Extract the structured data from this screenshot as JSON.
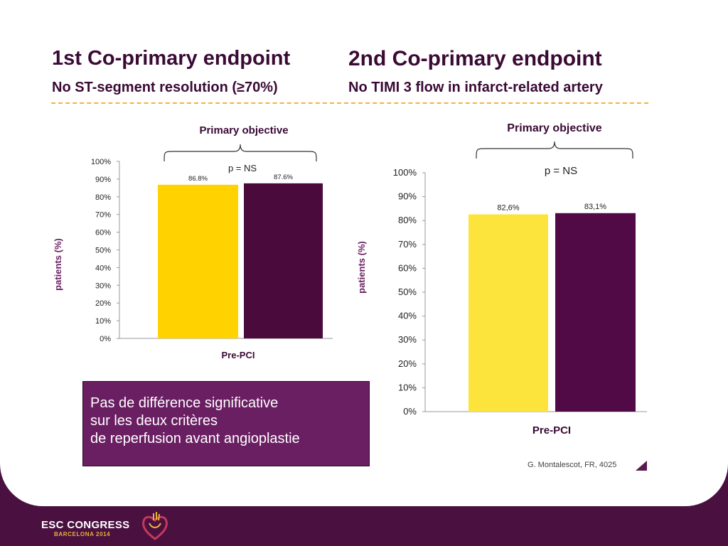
{
  "headers": {
    "left_title": "1st Co-primary endpoint",
    "left_subtitle": "No ST-segment resolution (≥70%)",
    "right_title": "2nd Co-primary endpoint",
    "right_subtitle": "No TIMI 3 flow in infarct-related artery"
  },
  "chart_data": [
    {
      "type": "bar",
      "title": "Primary objective",
      "annotation": "p = NS",
      "categories": [
        "Pre-PCI"
      ],
      "xlabel": "Pre-PCI",
      "ylabel": "patients (%)",
      "ylim": [
        0,
        100
      ],
      "yticks": [
        "0%",
        "10%",
        "20%",
        "30%",
        "40%",
        "50%",
        "60%",
        "70%",
        "80%",
        "90%",
        "100%"
      ],
      "series": [
        {
          "values": [
            86.8
          ],
          "label": "86.8%",
          "color": "#ffd200"
        },
        {
          "values": [
            87.6
          ],
          "label": "87.6%",
          "color": "#4a0a3c"
        }
      ]
    },
    {
      "type": "bar",
      "title": "Primary objective",
      "annotation": "p = NS",
      "categories": [
        "Pre-PCI"
      ],
      "xlabel": "Pre-PCI",
      "ylabel": "patients (%)",
      "ylim": [
        0,
        100
      ],
      "yticks": [
        "0%",
        "10%",
        "20%",
        "30%",
        "40%",
        "50%",
        "60%",
        "70%",
        "80%",
        "90%",
        "100%"
      ],
      "series": [
        {
          "values": [
            82.6
          ],
          "label": "82,6%",
          "color": "#fde43c"
        },
        {
          "values": [
            83.1
          ],
          "label": "83,1%",
          "color": "#520a46"
        }
      ]
    }
  ],
  "message": {
    "line1": "Pas de différence significative",
    "line2": "sur les deux critères",
    "line3": "de reperfusion avant angioplastie"
  },
  "credit": "G. Montalescot, FR, 4025",
  "footer": {
    "logo_main": "ESC CONGRESS",
    "logo_sub": "BARCELONA 2014"
  }
}
